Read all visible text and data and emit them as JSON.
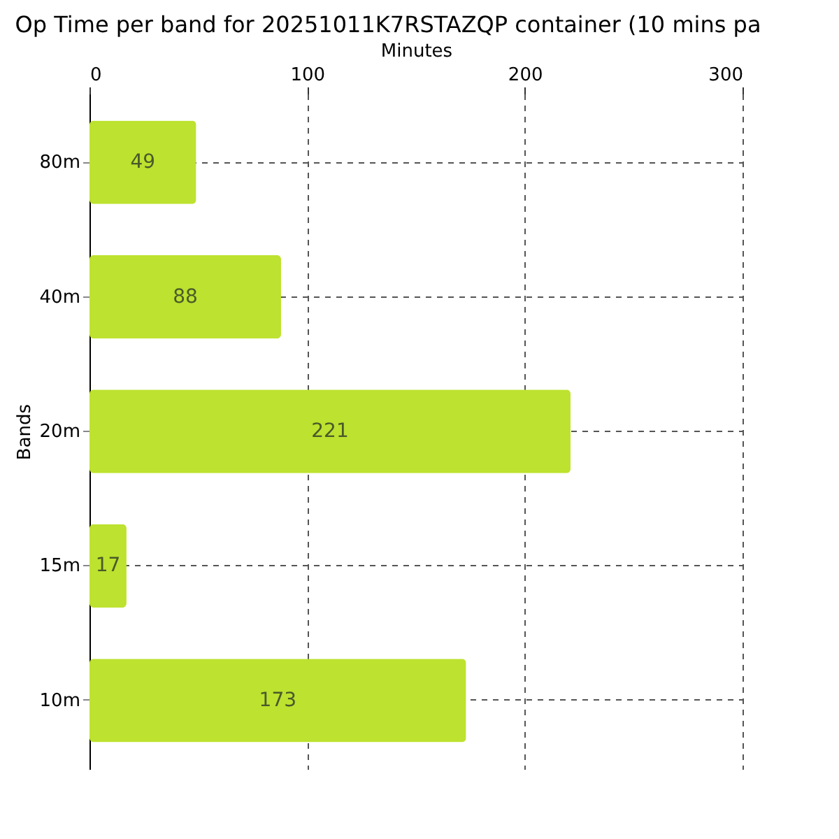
{
  "chart_data": {
    "type": "bar",
    "orientation": "horizontal",
    "title": "Op Time per band for 20251011K7RSTAZQP container (10 mins pa",
    "xlabel": "Minutes",
    "ylabel": "Bands",
    "categories": [
      "80m",
      "40m",
      "20m",
      "15m",
      "10m"
    ],
    "values": [
      49,
      88,
      221,
      17,
      173
    ],
    "color": "#bde22f",
    "xlim": [
      0,
      300
    ],
    "xticks": [
      0,
      100,
      200,
      300
    ],
    "grid": true,
    "data_labels": true
  }
}
